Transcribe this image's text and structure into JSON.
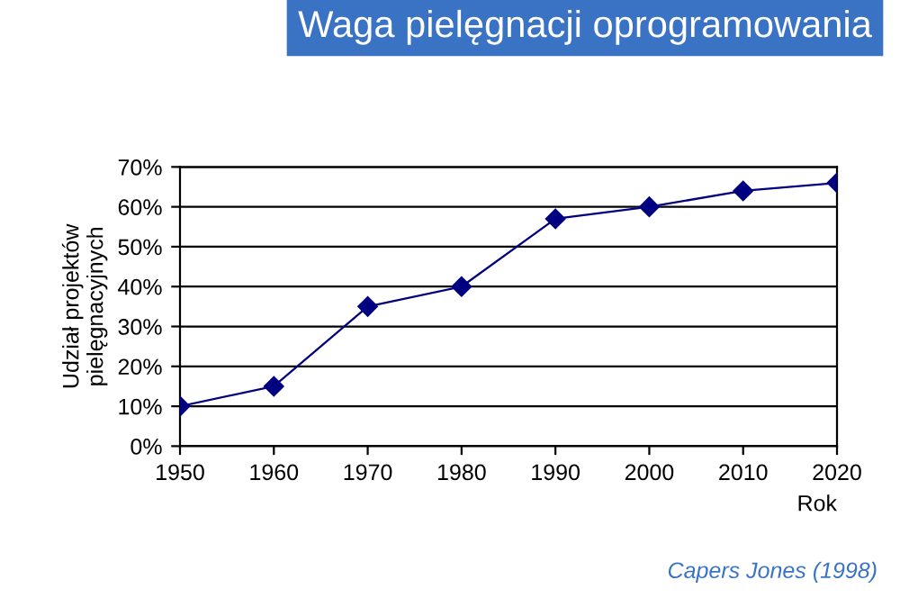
{
  "chart_data": {
    "type": "line",
    "title": "Waga pielęgnacji oprogramowania",
    "xlabel": "Rok",
    "ylabel": "Udział projektów\npielęgnacyjnych",
    "annotations": [
      "Capers Jones (1998)"
    ],
    "x": [
      1950,
      1960,
      1970,
      1980,
      1990,
      2000,
      2010,
      2020
    ],
    "series": [
      {
        "color": "#000080",
        "values": [
          10,
          15,
          35,
          40,
          57,
          60,
          64,
          66
        ]
      }
    ],
    "xlim": [
      1950,
      2020
    ],
    "xticks": [
      1950,
      1960,
      1970,
      1980,
      1990,
      2000,
      2010,
      2020
    ],
    "ylim": [
      0,
      70
    ],
    "yticks": [
      {
        "value": 0,
        "label": "0%"
      },
      {
        "value": 10,
        "label": "10%"
      },
      {
        "value": 20,
        "label": "20%"
      },
      {
        "value": 30,
        "label": "30%"
      },
      {
        "value": 40,
        "label": "40%"
      },
      {
        "value": 50,
        "label": "50%"
      },
      {
        "value": 60,
        "label": "60%"
      },
      {
        "value": 70,
        "label": "70%"
      }
    ],
    "grid": "y",
    "marker": "diamond",
    "line_style": "solid"
  }
}
